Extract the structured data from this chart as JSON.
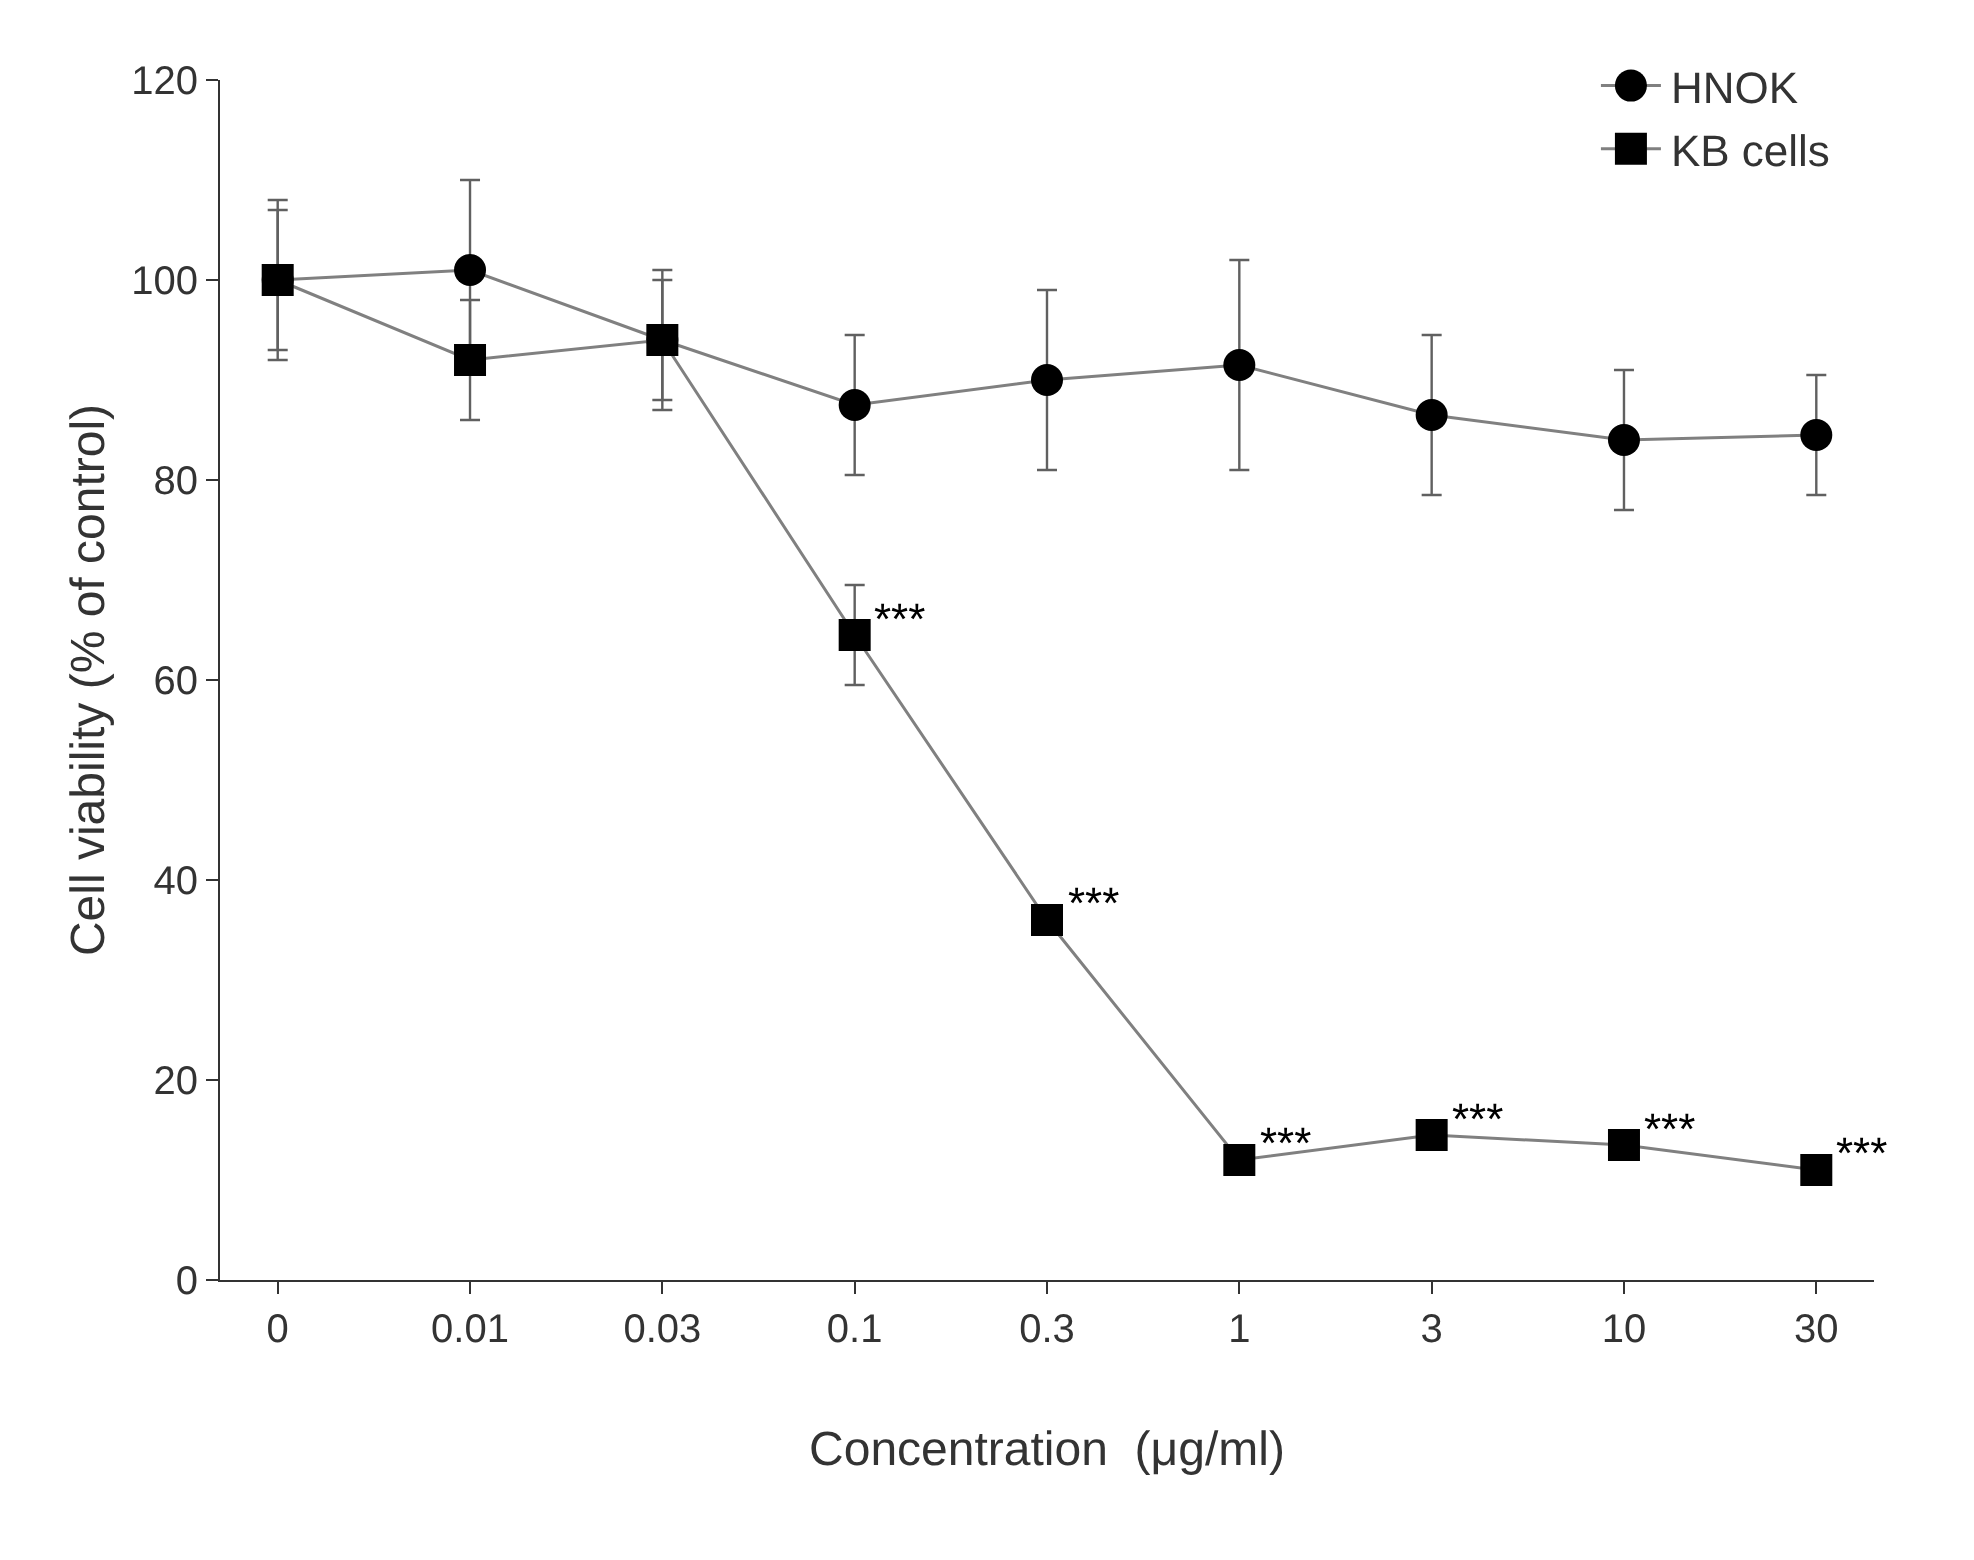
{
  "chart_data": {
    "type": "line",
    "xlabel": "Concentration  (μg/ml)",
    "ylabel": "Cell viability (% of control)",
    "categories": [
      "0",
      "0.01",
      "0.03",
      "0.1",
      "0.3",
      "1",
      "3",
      "10",
      "30"
    ],
    "ylim": [
      0,
      120
    ],
    "yticks": [
      0,
      20,
      40,
      60,
      80,
      100,
      120
    ],
    "grid": false,
    "legend": "top right",
    "series": [
      {
        "name": "HNOK",
        "color": "#000000",
        "marker": "circle",
        "values": [
          100,
          101,
          94,
          87.5,
          90,
          91.5,
          86.5,
          84,
          84.5
        ],
        "errors": [
          8,
          9,
          7,
          7,
          9,
          10.5,
          8,
          7,
          6
        ]
      },
      {
        "name": "KB cells",
        "color": "#000000",
        "marker": "square",
        "values": [
          100,
          92,
          94,
          64.5,
          36,
          12,
          14.5,
          13.5,
          11
        ],
        "errors": [
          7,
          6,
          6,
          5,
          null,
          null,
          null,
          null,
          null
        ]
      }
    ],
    "annotations": [
      {
        "text": "***",
        "x": "0.1",
        "y": 64.5
      },
      {
        "text": "***",
        "x": "0.3",
        "y": 36
      },
      {
        "text": "***",
        "x": "1",
        "y": 12
      },
      {
        "text": "***",
        "x": "3",
        "y": 14.5
      },
      {
        "text": "***",
        "x": "10",
        "y": 13.5
      },
      {
        "text": "***",
        "x": "30",
        "y": 11
      }
    ]
  }
}
